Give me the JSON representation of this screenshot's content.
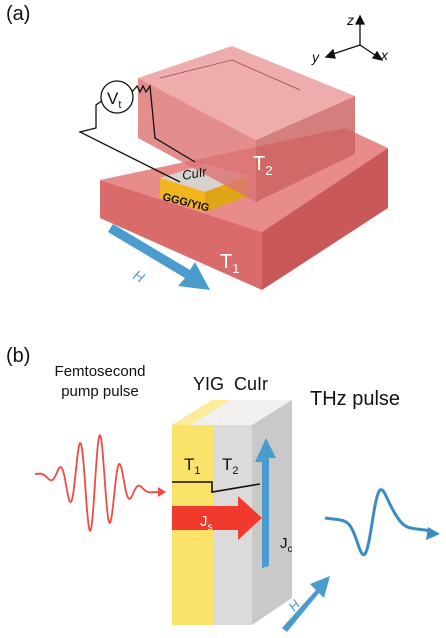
{
  "panel_a": {
    "label": "(a)",
    "axes": {
      "z": "z",
      "y": "y",
      "x": "x"
    },
    "voltmeter": {
      "symbol": "V",
      "sub": "t"
    },
    "sample_top": "CuIr",
    "sample_side": "GGG/YIG",
    "upper_block": {
      "symbol": "T",
      "sub": "2"
    },
    "lower_block": {
      "symbol": "T",
      "sub": "1"
    },
    "field": "H"
  },
  "panel_b": {
    "label": "(b)",
    "pump": [
      "Femtosecond",
      "pump pulse"
    ],
    "layers": [
      "YIG",
      "CuIr"
    ],
    "output": "THz pulse",
    "t1": {
      "symbol": "T",
      "sub": "1"
    },
    "t2": {
      "symbol": "T",
      "sub": "2"
    },
    "js": {
      "symbol": "J",
      "sub": "s"
    },
    "jc": {
      "symbol": "J",
      "sub": "c"
    },
    "field": "H"
  }
}
